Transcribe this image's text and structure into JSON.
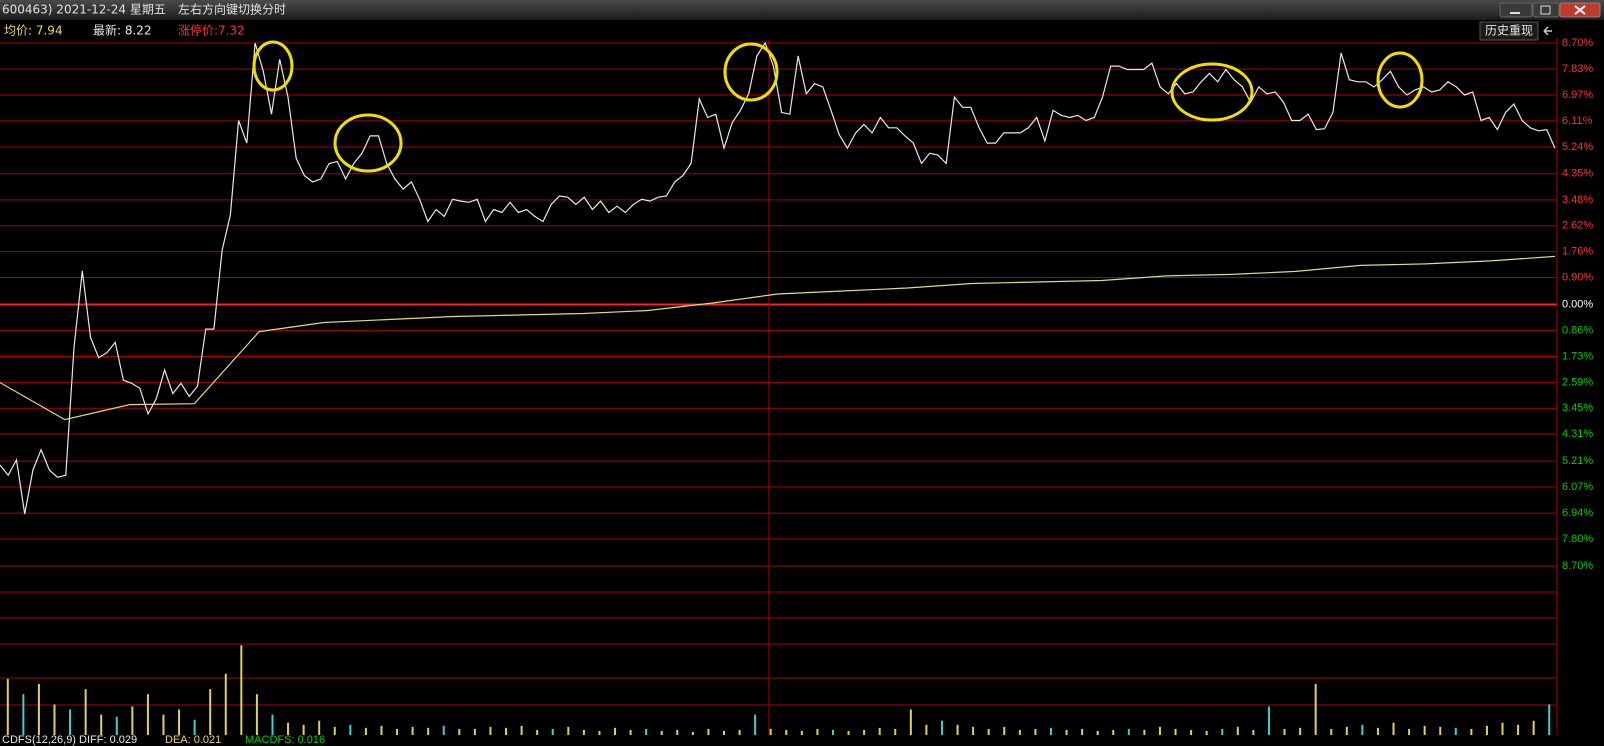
{
  "header": {
    "title": "600463) 2021-12-24 星期五",
    "hint": "左右方向键切换分时",
    "button": "历史重现"
  },
  "info": {
    "avg": "均价: 7.94",
    "latest": "最新: 8.22",
    "limit": "涨停价:7.32"
  },
  "chart_data": {
    "type": "line",
    "ylim": [
      -8.7,
      8.7
    ],
    "yticks": [
      {
        "value": 8.7,
        "label": "8.70%"
      },
      {
        "value": 7.83,
        "label": "7.83%"
      },
      {
        "value": 6.97,
        "label": "6.97%"
      },
      {
        "value": 6.11,
        "label": "6.11%"
      },
      {
        "value": 5.24,
        "label": "5.24%"
      },
      {
        "value": 4.35,
        "label": "4.35%"
      },
      {
        "value": 3.48,
        "label": "3.48%"
      },
      {
        "value": 2.62,
        "label": "2.62%"
      },
      {
        "value": 1.76,
        "label": "1.76%"
      },
      {
        "value": 0.9,
        "label": "0.90%"
      },
      {
        "value": 0,
        "label": "0.00%"
      },
      {
        "value": -0.86,
        "label": "0.86%"
      },
      {
        "value": -1.73,
        "label": "1.73%"
      },
      {
        "value": -2.59,
        "label": "2.59%"
      },
      {
        "value": -3.45,
        "label": "3.45%"
      },
      {
        "value": -4.31,
        "label": "4.31%"
      },
      {
        "value": -5.21,
        "label": "5.21%"
      },
      {
        "value": -6.07,
        "label": "6.07%"
      },
      {
        "value": -6.94,
        "label": "6.94%"
      },
      {
        "value": -7.8,
        "label": "7.80%"
      },
      {
        "value": -8.7,
        "label": "8.70%"
      }
    ],
    "tick_colors": {
      "up": "#ff3232",
      "zero": "#ffffff",
      "down": "#00d000"
    },
    "grid_color": "#b00000",
    "series": [
      {
        "color": "#e8e8e8",
        "values": [
          -5.34,
          -5.68,
          -5.17,
          -6.97,
          -5.51,
          -4.83,
          -5.51,
          -5.75,
          -5.68,
          -1.43,
          1.12,
          -1.09,
          -1.77,
          -1.6,
          -1.26,
          -2.52,
          -2.62,
          -2.79,
          -3.64,
          -3.13,
          -2.18,
          -2.96,
          -2.62,
          -3.06,
          -2.72,
          -0.82,
          -0.82,
          1.8,
          2.99,
          6.12,
          5.37,
          8.7,
          7.76,
          6.33,
          8.16,
          6.9,
          4.86,
          4.29,
          4.08,
          4.18,
          4.69,
          4.76,
          4.18,
          4.69,
          5.03,
          5.61,
          5.61,
          4.69,
          4.18,
          3.84,
          4.08,
          3.5,
          2.76,
          3.16,
          2.93,
          3.5,
          3.44,
          3.4,
          3.5,
          2.76,
          3.16,
          3.06,
          3.4,
          3.06,
          3.16,
          2.93,
          2.76,
          3.33,
          3.61,
          3.57,
          3.33,
          3.57,
          3.16,
          3.44,
          3.06,
          3.27,
          3.06,
          3.33,
          3.5,
          3.44,
          3.57,
          3.61,
          4.08,
          4.29,
          4.69,
          6.84,
          6.22,
          6.33,
          5.2,
          6.05,
          6.46,
          7.01,
          8.27,
          8.7,
          7.93,
          6.39,
          6.33,
          8.27,
          7.01,
          7.35,
          7.24,
          6.46,
          5.65,
          5.2,
          5.71,
          5.99,
          5.71,
          6.22,
          5.88,
          5.88,
          5.61,
          5.37,
          4.69,
          5.03,
          4.97,
          4.69,
          6.9,
          6.56,
          6.56,
          5.88,
          5.37,
          5.37,
          5.71,
          5.71,
          5.71,
          5.88,
          6.22,
          5.44,
          6.46,
          6.29,
          6.22,
          6.29,
          6.12,
          6.22,
          6.9,
          7.93,
          7.93,
          7.82,
          7.82,
          7.82,
          8.03,
          7.24,
          7.01,
          7.35,
          7.01,
          7.07,
          7.41,
          7.69,
          7.41,
          7.82,
          7.48,
          7.24,
          6.73,
          7.24,
          7.01,
          7.07,
          6.73,
          6.12,
          6.12,
          6.33,
          5.82,
          5.85,
          6.39,
          8.37,
          7.48,
          7.41,
          7.41,
          7.24,
          7.48,
          7.76,
          7.24,
          6.97,
          7.14,
          7.24,
          7.07,
          7.14,
          7.41,
          7.24,
          6.97,
          7.07,
          6.12,
          6.22,
          5.82,
          6.39,
          6.67,
          6.12,
          5.88,
          5.78,
          5.82,
          5.2
        ]
      },
      {
        "color": "#e0dc78",
        "values": [
          -2.6,
          -3.83,
          -3.33,
          -3.3,
          -0.9,
          -0.6,
          -0.5,
          -0.4,
          -0.35,
          -0.3,
          -0.2,
          0.05,
          0.35,
          0.45,
          0.55,
          0.7,
          0.75,
          0.8,
          0.95,
          1.0,
          1.1,
          1.3,
          1.35,
          1.45,
          1.6
        ]
      }
    ],
    "volume": [
      55,
      40,
      50,
      30,
      25,
      45,
      20,
      18,
      28,
      40,
      20,
      25,
      15,
      45,
      60,
      88,
      40,
      20,
      12,
      10,
      14,
      8,
      10,
      7,
      9,
      6,
      8,
      7,
      9,
      6,
      6,
      8,
      7,
      9,
      5,
      6,
      8,
      5,
      4,
      7,
      5,
      6,
      4,
      5,
      3,
      6,
      4,
      5,
      20,
      6,
      5,
      4,
      6,
      5,
      4,
      5,
      7,
      6,
      25,
      10,
      14,
      10,
      8,
      6,
      8,
      5,
      6,
      7,
      5,
      6,
      4,
      5,
      6,
      5,
      8,
      6,
      5,
      4,
      6,
      8,
      5,
      28,
      6,
      7,
      50,
      6,
      8,
      10,
      7,
      12,
      6,
      9,
      8,
      7,
      6,
      9,
      12,
      10,
      14,
      30
    ],
    "volume_colors": [
      "#e0d060",
      "#40d0d0",
      "#e0d060",
      "#e0d060",
      "#40d0d0",
      "#e0d060",
      "#e0d060",
      "#40d0d0",
      "#e0d060",
      "#e0d060",
      "#e0d060",
      "#e0d060",
      "#40d0d0",
      "#e0d060",
      "#e0d060",
      "#e0d060",
      "#e0d060",
      "#40d0d0",
      "#e0d060",
      "#e0d060",
      "#e0d060",
      "#e0d060",
      "#40d0d0",
      "#e0d060",
      "#e0d060",
      "#e0d060",
      "#e0d060",
      "#e0d060",
      "#40d0d0",
      "#e0d060",
      "#e0d060",
      "#e0d060",
      "#e0d060",
      "#e0d060",
      "#e0d060",
      "#40d0d0",
      "#e0d060",
      "#e0d060",
      "#e0d060",
      "#e0d060",
      "#e0d060",
      "#40d0d0",
      "#e0d060",
      "#e0d060",
      "#e0d060",
      "#e0d060",
      "#e0d060",
      "#e0d060",
      "#40d0d0",
      "#e0d060",
      "#e0d060",
      "#e0d060",
      "#e0d060",
      "#40d0d0",
      "#e0d060",
      "#e0d060",
      "#e0d060",
      "#e0d060",
      "#e0d060",
      "#e0d060",
      "#40d0d0",
      "#e0d060",
      "#e0d060",
      "#e0d060",
      "#e0d060",
      "#e0d060",
      "#e0d060",
      "#40d0d0",
      "#e0d060",
      "#e0d060",
      "#e0d060",
      "#e0d060",
      "#40d0d0",
      "#e0d060",
      "#e0d060",
      "#e0d060",
      "#e0d060",
      "#e0d060",
      "#40d0d0",
      "#e0d060",
      "#e0d060",
      "#40d0d0",
      "#e0d060",
      "#e0d060",
      "#e0d060",
      "#e0d060",
      "#e0d060",
      "#40d0d0",
      "#e0d060",
      "#e0d060",
      "#e0d060",
      "#e0d060",
      "#e0d060",
      "#40d0d0",
      "#e0d060",
      "#e0d060",
      "#e0d060",
      "#e0d060",
      "#e0d060",
      "#40d0d0"
    ]
  },
  "macd": {
    "diff": "CDFS(12,26,9) DIFF: 0.029",
    "dea": "DEA: 0.021",
    "macd": "MACDFS: 0.016"
  }
}
